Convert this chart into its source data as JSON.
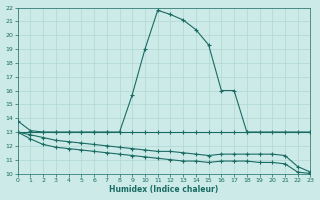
{
  "xlabel": "Humidex (Indice chaleur)",
  "background_color": "#cceae7",
  "grid_color": "#b0d8d4",
  "line_color": "#1a6b64",
  "xlim": [
    0,
    23
  ],
  "ylim": [
    10,
    22
  ],
  "xticks": [
    0,
    1,
    2,
    3,
    4,
    5,
    6,
    7,
    8,
    9,
    10,
    11,
    12,
    13,
    14,
    15,
    16,
    17,
    18,
    19,
    20,
    21,
    22,
    23
  ],
  "yticks": [
    10,
    11,
    12,
    13,
    14,
    15,
    16,
    17,
    18,
    19,
    20,
    21,
    22
  ],
  "series1_x": [
    0,
    1,
    2,
    3,
    4,
    5,
    6,
    7,
    8,
    9,
    10,
    11,
    12,
    13,
    14,
    15,
    16,
    17,
    18,
    23
  ],
  "series1_y": [
    13.8,
    13.1,
    13.0,
    13.0,
    13.0,
    13.0,
    13.0,
    13.0,
    13.0,
    15.7,
    19.0,
    21.8,
    21.5,
    21.1,
    20.4,
    19.3,
    16.0,
    16.0,
    13.0,
    13.0
  ],
  "series2_x": [
    0,
    1,
    2,
    3,
    4,
    5,
    6,
    7,
    8,
    9,
    10,
    11,
    12,
    13,
    14,
    15,
    16,
    17,
    18,
    19,
    20,
    21,
    22,
    23
  ],
  "series2_y": [
    13.0,
    13.0,
    13.0,
    13.0,
    13.0,
    13.0,
    13.0,
    13.0,
    13.0,
    13.0,
    13.0,
    13.0,
    13.0,
    13.0,
    13.0,
    13.0,
    13.0,
    13.0,
    13.0,
    13.0,
    13.0,
    13.0,
    13.0,
    13.0
  ],
  "series3_x": [
    0,
    1,
    2,
    3,
    4,
    5,
    6,
    7,
    8,
    9,
    10,
    11,
    12,
    13,
    14,
    15,
    16,
    17,
    18,
    19,
    20,
    21,
    22,
    23
  ],
  "series3_y": [
    13.0,
    12.8,
    12.6,
    12.4,
    12.3,
    12.2,
    12.1,
    12.0,
    11.9,
    11.8,
    11.7,
    11.6,
    11.6,
    11.5,
    11.4,
    11.3,
    11.4,
    11.4,
    11.4,
    11.4,
    11.4,
    11.3,
    10.5,
    10.1
  ],
  "series4_x": [
    0,
    1,
    2,
    3,
    4,
    5,
    6,
    7,
    8,
    9,
    10,
    11,
    12,
    13,
    14,
    15,
    16,
    17,
    18,
    19,
    20,
    21,
    22,
    23
  ],
  "series4_y": [
    13.0,
    12.5,
    12.1,
    11.9,
    11.8,
    11.7,
    11.6,
    11.5,
    11.4,
    11.3,
    11.2,
    11.1,
    11.0,
    10.9,
    10.9,
    10.8,
    10.9,
    10.9,
    10.9,
    10.8,
    10.8,
    10.7,
    10.1,
    10.0
  ]
}
